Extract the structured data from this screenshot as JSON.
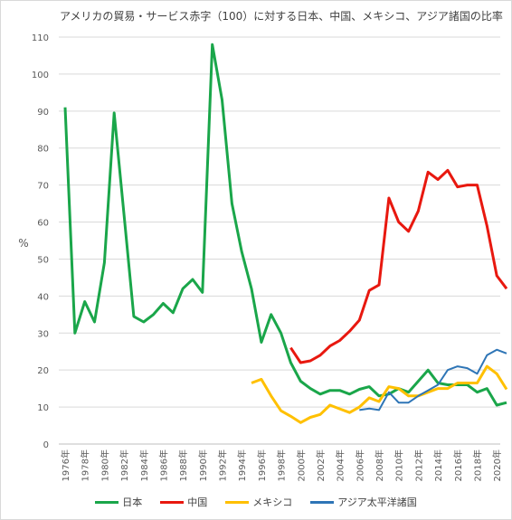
{
  "chart_data": {
    "type": "line",
    "title": "アメリカの貿易・サービス赤字（100）に対する日本、中国、メキシコ、アジア諸国の比率",
    "ylabel": "%",
    "ylim": [
      0,
      110
    ],
    "yticks": [
      0,
      10,
      20,
      30,
      40,
      50,
      60,
      70,
      80,
      90,
      100,
      110
    ],
    "xlim": [
      1976,
      2021
    ],
    "xticks": [
      1976,
      1978,
      1980,
      1982,
      1984,
      1986,
      1988,
      1990,
      1992,
      1994,
      1996,
      1998,
      2000,
      2002,
      2004,
      2006,
      2008,
      2010,
      2012,
      2014,
      2016,
      2018,
      2020
    ],
    "xtick_suffix": "年",
    "grid": true,
    "legend_position": "bottom",
    "series": [
      {
        "name": "日本",
        "color": "#1aa64a",
        "x": [
          1976,
          1977,
          1978,
          1979,
          1980,
          1981,
          1982,
          1983,
          1984,
          1985,
          1986,
          1987,
          1988,
          1989,
          1990,
          1991,
          1992,
          1993,
          1994,
          1995,
          1996,
          1997,
          1998,
          1999,
          2000,
          2001,
          2002,
          2003,
          2004,
          2005,
          2006,
          2007,
          2008,
          2009,
          2010,
          2011,
          2012,
          2013,
          2014,
          2015,
          2016,
          2017,
          2018,
          2019,
          2020,
          2021
        ],
        "values": [
          91,
          30,
          38.5,
          33,
          49,
          89.5,
          62,
          34.5,
          33,
          35,
          38,
          35.5,
          42,
          44.5,
          41,
          108,
          93,
          65,
          52,
          42,
          27.5,
          35,
          30,
          22,
          17,
          15,
          13.5,
          14.5,
          14.5,
          13.5,
          14.8,
          15.5,
          13,
          13.5,
          15,
          14,
          17,
          20,
          16.5,
          16,
          16,
          16,
          14,
          15,
          10.5,
          11.2
        ]
      },
      {
        "name": "中国",
        "color": "#e8180f",
        "x": [
          1999,
          2000,
          2001,
          2002,
          2003,
          2004,
          2005,
          2006,
          2007,
          2008,
          2009,
          2010,
          2011,
          2012,
          2013,
          2014,
          2015,
          2016,
          2017,
          2018,
          2019,
          2020,
          2021
        ],
        "values": [
          26,
          22,
          22.5,
          24,
          26.5,
          28,
          30.5,
          33.5,
          41.5,
          43,
          66.5,
          60,
          57.5,
          63,
          73.5,
          71.5,
          74,
          69.5,
          70,
          70,
          59,
          45.5,
          42
        ]
      },
      {
        "name": "メキシコ",
        "color": "#ffc000",
        "x": [
          1995,
          1996,
          1997,
          1998,
          1999,
          2000,
          2001,
          2002,
          2003,
          2004,
          2005,
          2006,
          2007,
          2008,
          2009,
          2010,
          2011,
          2012,
          2013,
          2014,
          2015,
          2016,
          2017,
          2018,
          2019,
          2020,
          2021
        ],
        "values": [
          16.5,
          17.5,
          13,
          9,
          7.5,
          5.8,
          7.2,
          8,
          10.5,
          9.5,
          8.5,
          10,
          12.5,
          11.5,
          15.5,
          15,
          13,
          13,
          14,
          15,
          15,
          16.5,
          16.5,
          16.5,
          21,
          19,
          14.8
        ]
      },
      {
        "name": "アジア太平洋諸国",
        "color": "#2e75b6",
        "x": [
          2006,
          2007,
          2008,
          2009,
          2010,
          2011,
          2012,
          2013,
          2014,
          2015,
          2016,
          2017,
          2018,
          2019,
          2020,
          2021
        ],
        "values": [
          9.2,
          9.6,
          9.2,
          14,
          11.2,
          11.2,
          13,
          14.5,
          16,
          20,
          21,
          20.5,
          19,
          24,
          25.5,
          24.5
        ]
      }
    ]
  }
}
